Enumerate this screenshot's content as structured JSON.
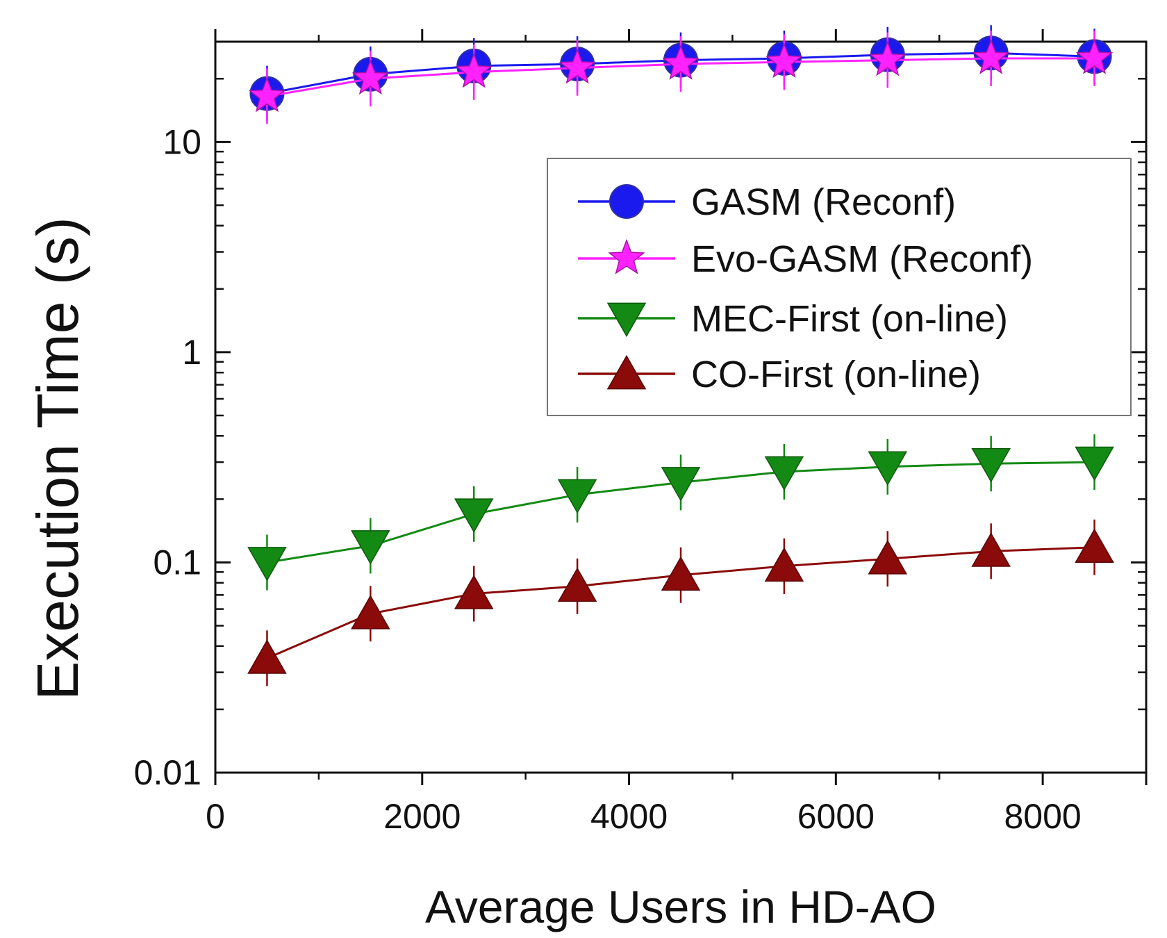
{
  "chart_data": {
    "type": "line",
    "title": "",
    "xlabel": "Average Users in HD-AO",
    "ylabel": "Execution Time (s)",
    "xlim": [
      0,
      9000
    ],
    "ylim": [
      0.01,
      30
    ],
    "yscale": "log",
    "x_ticks": [
      0,
      2000,
      4000,
      6000,
      8000
    ],
    "x_tick_labels": [
      "0",
      "2000",
      "4000",
      "6000",
      "8000"
    ],
    "y_ticks": [
      0.01,
      0.1,
      1,
      10
    ],
    "y_tick_labels": [
      "0.01",
      "0.1",
      "1",
      "10"
    ],
    "grid": false,
    "legend_position": "upper-right",
    "x": [
      500,
      1500,
      2500,
      3500,
      4500,
      5500,
      6500,
      7500,
      8500
    ],
    "series": [
      {
        "name": "GASM (Reconf)",
        "color": "#1a1aee",
        "marker": "circle",
        "values": [
          17,
          21,
          23,
          23.5,
          24.5,
          25,
          26,
          26.5,
          25.5
        ]
      },
      {
        "name": "Evo-GASM (Reconf)",
        "color": "#ff22ff",
        "marker": "star",
        "values": [
          16.5,
          20,
          21.5,
          22.5,
          23.5,
          24,
          24.5,
          25,
          25
        ]
      },
      {
        "name": "MEC-First (on-line)",
        "color": "#138a13",
        "marker": "triangle-down",
        "values": [
          0.1,
          0.12,
          0.17,
          0.21,
          0.24,
          0.27,
          0.285,
          0.295,
          0.3
        ]
      },
      {
        "name": "CO-First (on-line)",
        "color": "#8b0a0a",
        "marker": "triangle-up",
        "values": [
          0.035,
          0.057,
          0.071,
          0.077,
          0.087,
          0.096,
          0.104,
          0.113,
          0.118
        ]
      }
    ]
  }
}
